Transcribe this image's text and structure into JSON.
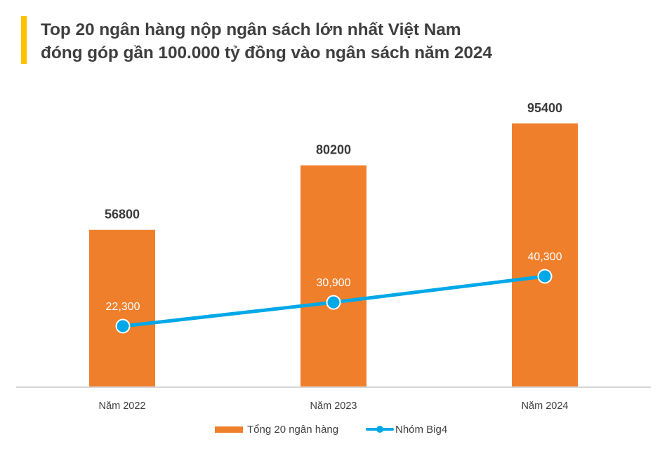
{
  "header": {
    "title_line1": "Top 20 ngân hàng nộp ngân sách lớn nhất Việt Nam",
    "title_line2": "đóng góp gần 100.000 tỷ đồng vào ngân sách năm 2024",
    "accent_color": "#FFC000"
  },
  "legend": {
    "bar_label": "Tổng 20 ngân hàng",
    "line_label": "Nhóm Big4"
  },
  "colors": {
    "bar": "#F07F2C",
    "line": "#00A8E8",
    "axis": "#C8C8C8",
    "text": "#404040"
  },
  "chart_data": {
    "type": "bar+line",
    "title": "Top 20 ngân hàng nộp ngân sách lớn nhất Việt Nam đóng góp gần 100.000 tỷ đồng vào ngân sách năm 2024",
    "categories": [
      "Năm 2022",
      "Năm 2023",
      "Năm 2024"
    ],
    "series": [
      {
        "name": "Tổng 20 ngân hàng",
        "type": "bar",
        "values": [
          56800,
          80200,
          95400
        ],
        "labels": [
          "56800",
          "80200",
          "95400"
        ]
      },
      {
        "name": "Nhóm Big4",
        "type": "line",
        "values": [
          22300,
          30900,
          40300
        ],
        "labels": [
          "22,300",
          "30,900",
          "40,300"
        ]
      }
    ],
    "xlabel": "",
    "ylabel": "",
    "grid": false,
    "legend_position": "bottom",
    "unit": "tỷ đồng"
  }
}
